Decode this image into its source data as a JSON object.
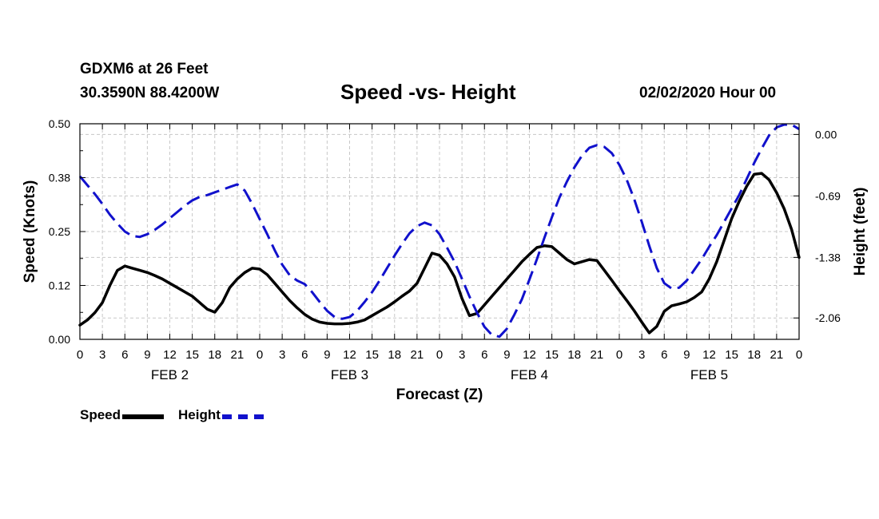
{
  "header": {
    "station": "GDXM6 at 26 Feet",
    "coords": "30.3590N 88.4200W",
    "title": "Speed -vs- Height",
    "datetime": "02/02/2020 Hour 00"
  },
  "legend": {
    "speed": "Speed",
    "height": "Height"
  },
  "chart_data": {
    "type": "line",
    "title": "Speed -vs- Height",
    "xlabel": "Forecast (Z)",
    "ylabel": "Speed (Knots)",
    "y2label": "Height (feet)",
    "xlim": [
      0,
      96
    ],
    "ylim": [
      0,
      0.5
    ],
    "y2lim": [
      -2.3,
      0.12
    ],
    "grid": true,
    "legend_position": "bottom-left",
    "yticks": [
      "0.00",
      "0.12",
      "0.25",
      "0.38",
      "0.50"
    ],
    "ytick_values": [
      0,
      0.125,
      0.25,
      0.375,
      0.5
    ],
    "y2ticks": [
      "0.00",
      "-0.69",
      "-1.38",
      "-2.06"
    ],
    "y2tick_values": [
      0,
      -0.69,
      -1.38,
      -2.06
    ],
    "xticks": [
      "0",
      "3",
      "6",
      "9",
      "12",
      "15",
      "18",
      "21",
      "0",
      "3",
      "6",
      "9",
      "12",
      "15",
      "18",
      "21",
      "0",
      "3",
      "6",
      "9",
      "12",
      "15",
      "18",
      "21",
      "0",
      "3",
      "6",
      "9",
      "12",
      "15",
      "18",
      "21",
      "0"
    ],
    "day_labels": [
      {
        "label": "FEB 2",
        "hour": 12
      },
      {
        "label": "FEB 3",
        "hour": 36
      },
      {
        "label": "FEB 4",
        "hour": 60
      },
      {
        "label": "FEB 5",
        "hour": 84
      }
    ],
    "series": [
      {
        "name": "Speed",
        "axis": "left",
        "color": "#000000",
        "style": "solid",
        "x": [
          0,
          1,
          2,
          3,
          4,
          5,
          6,
          7,
          8,
          9,
          10,
          11,
          12,
          13,
          14,
          15,
          16,
          17,
          18,
          19,
          20,
          21,
          22,
          23,
          24,
          25,
          26,
          27,
          28,
          29,
          30,
          31,
          32,
          33,
          34,
          35,
          36,
          37,
          38,
          39,
          40,
          41,
          42,
          43,
          44,
          45,
          46,
          47,
          48,
          49,
          50,
          51,
          52,
          53,
          54,
          55,
          56,
          57,
          58,
          59,
          60,
          61,
          62,
          63,
          64,
          65,
          66,
          67,
          68,
          69,
          70,
          71,
          72,
          73,
          74,
          75,
          76,
          77,
          78,
          79,
          80,
          81,
          82,
          83,
          84,
          85,
          86,
          87,
          88,
          89,
          90,
          91,
          92,
          93,
          94,
          95,
          96
        ],
        "y": [
          0.033,
          0.045,
          0.062,
          0.085,
          0.125,
          0.16,
          0.17,
          0.165,
          0.16,
          0.155,
          0.148,
          0.14,
          0.13,
          0.12,
          0.11,
          0.1,
          0.085,
          0.07,
          0.063,
          0.085,
          0.12,
          0.14,
          0.155,
          0.165,
          0.163,
          0.15,
          0.13,
          0.11,
          0.09,
          0.073,
          0.058,
          0.047,
          0.04,
          0.037,
          0.036,
          0.036,
          0.037,
          0.04,
          0.045,
          0.055,
          0.065,
          0.075,
          0.087,
          0.1,
          0.112,
          0.13,
          0.165,
          0.2,
          0.195,
          0.175,
          0.145,
          0.095,
          0.055,
          0.06,
          0.08,
          0.1,
          0.12,
          0.14,
          0.16,
          0.18,
          0.197,
          0.213,
          0.217,
          0.215,
          0.2,
          0.185,
          0.175,
          0.18,
          0.185,
          0.183,
          0.16,
          0.137,
          0.113,
          0.09,
          0.066,
          0.04,
          0.015,
          0.03,
          0.065,
          0.078,
          0.082,
          0.087,
          0.097,
          0.11,
          0.14,
          0.18,
          0.23,
          0.28,
          0.32,
          0.355,
          0.383,
          0.385,
          0.37,
          0.34,
          0.303,
          0.255,
          0.19
        ]
      },
      {
        "name": "Height",
        "axis": "right",
        "color": "#1111cc",
        "style": "dashed",
        "x": [
          0,
          1,
          2,
          3,
          4,
          5,
          6,
          7,
          8,
          9,
          10,
          11,
          12,
          13,
          14,
          15,
          16,
          17,
          18,
          19,
          20,
          21,
          22,
          23,
          24,
          25,
          26,
          27,
          28,
          29,
          30,
          31,
          32,
          33,
          34,
          35,
          36,
          37,
          38,
          39,
          40,
          41,
          42,
          43,
          44,
          45,
          46,
          47,
          48,
          49,
          50,
          51,
          52,
          53,
          54,
          55,
          56,
          57,
          58,
          59,
          60,
          61,
          62,
          63,
          64,
          65,
          66,
          67,
          68,
          69,
          70,
          71,
          72,
          73,
          74,
          75,
          76,
          77,
          78,
          79,
          80,
          81,
          82,
          83,
          84,
          85,
          86,
          87,
          88,
          89,
          90,
          91,
          92,
          93,
          94,
          95,
          96
        ],
        "y": [
          -0.47,
          -0.57,
          -0.67,
          -0.78,
          -0.9,
          -1.0,
          -1.09,
          -1.14,
          -1.15,
          -1.12,
          -1.07,
          -1.01,
          -0.94,
          -0.87,
          -0.8,
          -0.74,
          -0.7,
          -0.68,
          -0.65,
          -0.62,
          -0.59,
          -0.56,
          -0.63,
          -0.78,
          -0.95,
          -1.12,
          -1.3,
          -1.46,
          -1.58,
          -1.64,
          -1.68,
          -1.77,
          -1.88,
          -1.98,
          -2.05,
          -2.07,
          -2.05,
          -1.98,
          -1.88,
          -1.77,
          -1.64,
          -1.5,
          -1.36,
          -1.23,
          -1.11,
          -1.03,
          -0.99,
          -1.02,
          -1.12,
          -1.27,
          -1.43,
          -1.62,
          -1.82,
          -2.0,
          -2.16,
          -2.25,
          -2.27,
          -2.18,
          -2.02,
          -1.85,
          -1.63,
          -1.4,
          -1.16,
          -0.93,
          -0.71,
          -0.53,
          -0.37,
          -0.24,
          -0.15,
          -0.12,
          -0.14,
          -0.21,
          -0.34,
          -0.51,
          -0.73,
          -0.98,
          -1.25,
          -1.5,
          -1.67,
          -1.73,
          -1.72,
          -1.64,
          -1.52,
          -1.4,
          -1.26,
          -1.13,
          -0.98,
          -0.83,
          -0.68,
          -0.5,
          -0.32,
          -0.16,
          -0.01,
          0.08,
          0.11,
          0.11,
          0.06
        ]
      }
    ]
  }
}
